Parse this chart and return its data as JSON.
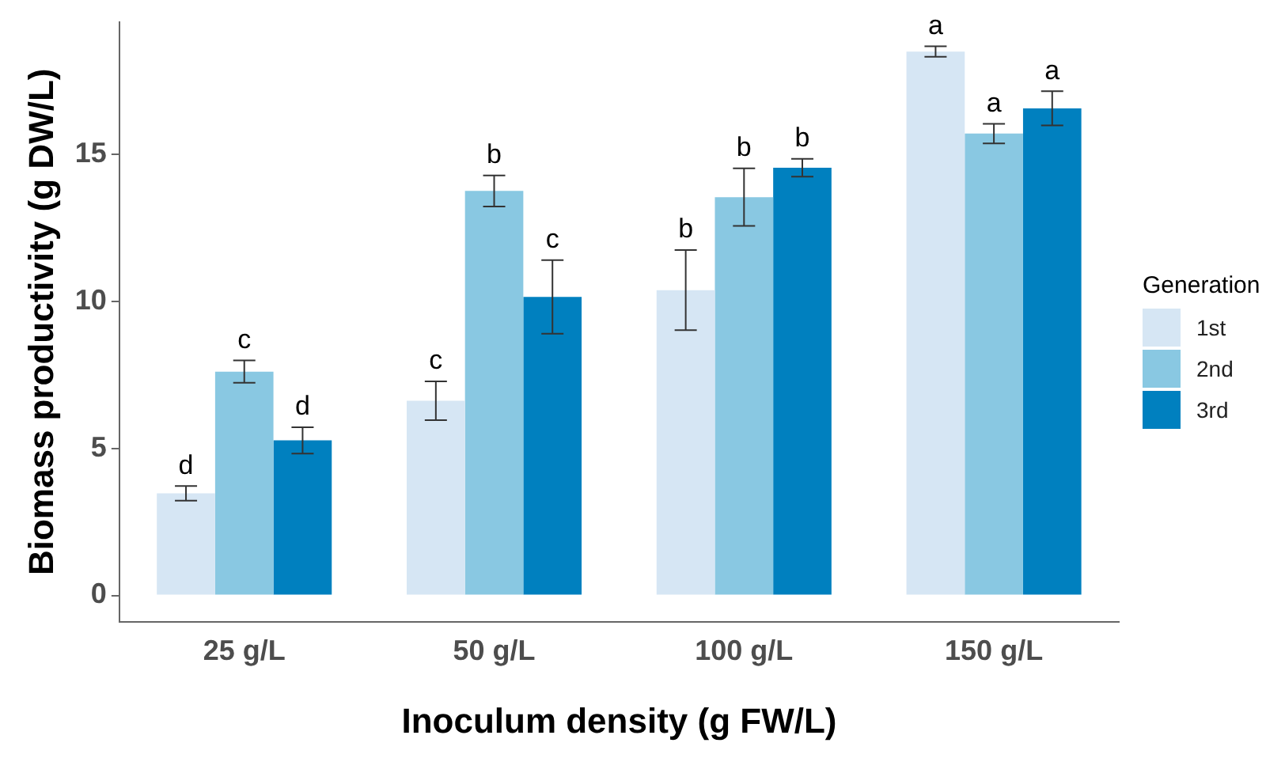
{
  "chart_data": {
    "type": "bar",
    "xlabel": "Inoculum density (g FW/L)",
    "ylabel": "Biomass productivity (g DW/L)",
    "legend_title": "Generation",
    "categories": [
      "25 g/L",
      "50 g/L",
      "100 g/L",
      "150 g/L"
    ],
    "series": [
      {
        "name": "1st",
        "color": "#d6e6f4",
        "values": [
          3.47,
          6.62,
          10.38,
          18.49
        ],
        "errors": [
          0.25,
          0.66,
          1.36,
          0.18
        ],
        "value_labels": [
          "d",
          "c",
          "b",
          "a"
        ]
      },
      {
        "name": "2nd",
        "color": "#89c8e2",
        "values": [
          7.61,
          13.75,
          13.54,
          15.7
        ],
        "errors": [
          0.38,
          0.53,
          0.98,
          0.33
        ],
        "value_labels": [
          "c",
          "b",
          "b",
          "a"
        ]
      },
      {
        "name": "3rd",
        "color": "#0080bf",
        "values": [
          5.27,
          10.15,
          14.54,
          16.56
        ],
        "errors": [
          0.45,
          1.25,
          0.3,
          0.58
        ],
        "value_labels": [
          "d",
          "c",
          "b",
          "a"
        ]
      }
    ],
    "ylim": [
      -0.9,
      19.5
    ],
    "yticks": [
      0,
      5,
      10,
      15
    ],
    "grid": false,
    "legend": "right"
  }
}
